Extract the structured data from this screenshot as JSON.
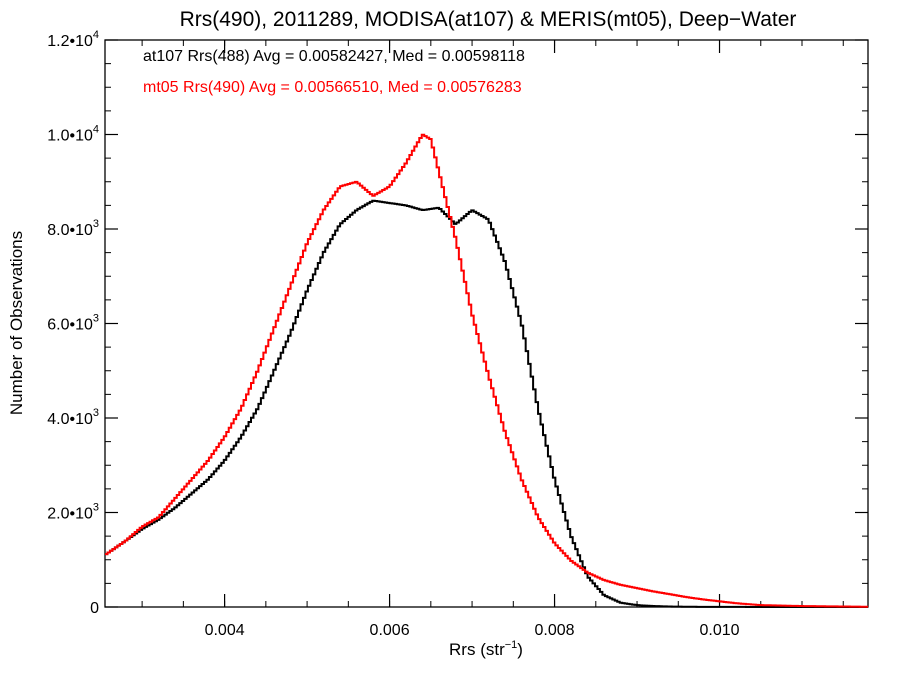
{
  "chart_data": {
    "type": "line",
    "title": "Rrs(490), 2011289, MODISA(at107) & MERIS(mt05), Deep−Water",
    "xlabel_main": "Rrs (str",
    "xlabel_sup": "−1",
    "xlabel_close": ")",
    "ylabel": "Number of Observations",
    "xlim": [
      0.00255,
      0.0118
    ],
    "ylim": [
      0,
      12000
    ],
    "x_ticks": [
      {
        "value": 0.004,
        "label": "0.004"
      },
      {
        "value": 0.006,
        "label": "0.006"
      },
      {
        "value": 0.008,
        "label": "0.008"
      },
      {
        "value": 0.01,
        "label": "0.010"
      }
    ],
    "y_ticks": [
      {
        "value": 0,
        "mant": "0",
        "exp": ""
      },
      {
        "value": 2000,
        "mant": "2.0•10",
        "exp": "3"
      },
      {
        "value": 4000,
        "mant": "4.0•10",
        "exp": "3"
      },
      {
        "value": 6000,
        "mant": "6.0•10",
        "exp": "3"
      },
      {
        "value": 8000,
        "mant": "8.0•10",
        "exp": "3"
      },
      {
        "value": 10000,
        "mant": "1.0•10",
        "exp": "4"
      },
      {
        "value": 12000,
        "mant": "1.2•10",
        "exp": "4"
      }
    ],
    "legend": [
      {
        "text": "at107 Rrs(488) Avg = 0.00582427, Med = 0.00598118",
        "color": "#000000"
      },
      {
        "text": "mt05 Rrs(490) Avg = 0.00566510, Med = 0.00576283",
        "color": "#ff0000"
      }
    ],
    "series": [
      {
        "color": "#000000",
        "x": [
          0.00255,
          0.0028,
          0.003,
          0.0032,
          0.0034,
          0.0036,
          0.0038,
          0.004,
          0.0042,
          0.0044,
          0.0046,
          0.0048,
          0.005,
          0.0052,
          0.0054,
          0.0056,
          0.0058,
          0.006,
          0.0062,
          0.0064,
          0.0066,
          0.0068,
          0.007,
          0.0072,
          0.0074,
          0.0076,
          0.0078,
          0.008,
          0.0082,
          0.0084,
          0.0086,
          0.0088,
          0.009,
          0.0092,
          0.0094,
          0.0096,
          0.0098,
          0.01,
          0.0105,
          0.011,
          0.0118
        ],
        "y": [
          1100,
          1400,
          1650,
          1850,
          2100,
          2400,
          2700,
          3100,
          3600,
          4200,
          5000,
          5800,
          6700,
          7500,
          8100,
          8400,
          8600,
          8550,
          8500,
          8400,
          8450,
          8100,
          8400,
          8200,
          7300,
          6000,
          4200,
          2700,
          1500,
          650,
          250,
          90,
          40,
          20,
          10,
          5,
          3,
          2,
          1,
          0,
          0
        ]
      },
      {
        "color": "#ff0000",
        "x": [
          0.00255,
          0.0028,
          0.003,
          0.0032,
          0.0034,
          0.0036,
          0.0038,
          0.004,
          0.0042,
          0.0044,
          0.0046,
          0.0048,
          0.005,
          0.0052,
          0.0054,
          0.0056,
          0.0058,
          0.006,
          0.0062,
          0.0064,
          0.0065,
          0.0066,
          0.0068,
          0.007,
          0.0072,
          0.0074,
          0.0076,
          0.0078,
          0.008,
          0.0082,
          0.0084,
          0.0086,
          0.0088,
          0.009,
          0.0092,
          0.0094,
          0.0096,
          0.0098,
          0.01,
          0.0102,
          0.0105,
          0.011,
          0.0118
        ],
        "y": [
          1100,
          1400,
          1700,
          1900,
          2300,
          2700,
          3100,
          3600,
          4200,
          5000,
          5900,
          6800,
          7700,
          8400,
          8900,
          9000,
          8700,
          8900,
          9400,
          10000,
          9900,
          9200,
          7800,
          6200,
          4900,
          3700,
          2700,
          1900,
          1350,
          980,
          730,
          570,
          470,
          400,
          330,
          270,
          210,
          160,
          120,
          80,
          40,
          20,
          5
        ]
      }
    ]
  }
}
